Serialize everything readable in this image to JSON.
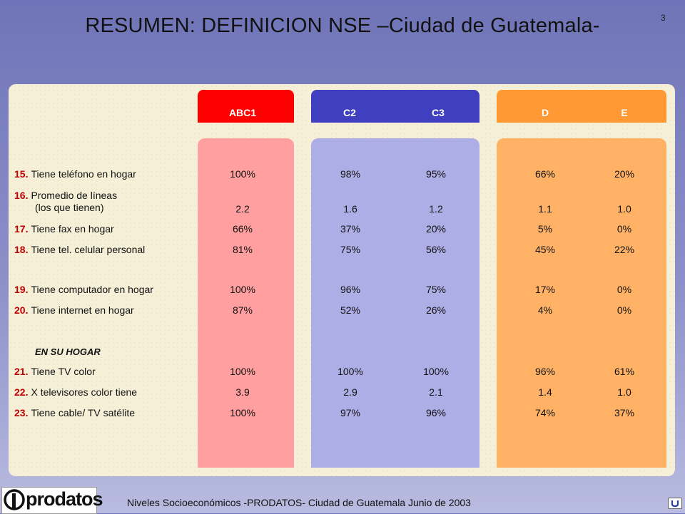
{
  "page_number": "3",
  "title": "RESUMEN: DEFINICION NSE –Ciudad de Guatemala-",
  "header": {
    "abc1": "ABC1",
    "c2": "C2",
    "c3": "C3",
    "d": "D",
    "e": "E"
  },
  "colors": {
    "abc1_header": "#ff0000",
    "c_header": "#3f3fbf",
    "de_header": "#ff9933",
    "abc1_bg": "#ff9f9f",
    "c_bg": "#aeaee6",
    "de_bg": "#ffb266"
  },
  "rows": [
    {
      "num": "15.",
      "label": "Tiene teléfono en hogar",
      "values": [
        "100%",
        "98%",
        "95%",
        "66%",
        "20%"
      ]
    },
    {
      "num": "16.",
      "label": "Promedio de líneas",
      "label2": "(los que tienen)",
      "values": [
        "2.2",
        "1.6",
        "1.2",
        "1.1",
        "1.0"
      ]
    },
    {
      "num": "17.",
      "label": "Tiene fax en hogar",
      "values": [
        "66%",
        "37%",
        "20%",
        "5%",
        "0%"
      ]
    },
    {
      "num": "18.",
      "label": "Tiene tel. celular personal",
      "values": [
        "81%",
        "75%",
        "56%",
        "45%",
        "22%"
      ]
    },
    {
      "num": "19.",
      "label": "Tiene computador en hogar",
      "values": [
        "100%",
        "96%",
        "75%",
        "17%",
        "0%"
      ]
    },
    {
      "num": "20.",
      "label": "Tiene internet en hogar",
      "values": [
        "87%",
        "52%",
        "26%",
        "4%",
        "0%"
      ]
    },
    {
      "num": "21.",
      "label": "Tiene TV color",
      "values": [
        "100%",
        "100%",
        "100%",
        "96%",
        "61%"
      ]
    },
    {
      "num": "22.",
      "label": "X televisores color tiene",
      "values": [
        "3.9",
        "2.9",
        "2.1",
        "1.4",
        "1.0"
      ]
    },
    {
      "num": "23.",
      "label": "Tiene cable/ TV satélite",
      "values": [
        "100%",
        "97%",
        "96%",
        "74%",
        "37%"
      ]
    }
  ],
  "section_head": "EN SU HOGAR",
  "footer": "Niveles Socioeconómicos  -PRODATOS-  Ciudad de Guatemala Junio de 2003",
  "logo_text": "prodatos",
  "icons": {
    "logo": "prodatos-logo-icon",
    "corner": "nav-corner-icon"
  }
}
